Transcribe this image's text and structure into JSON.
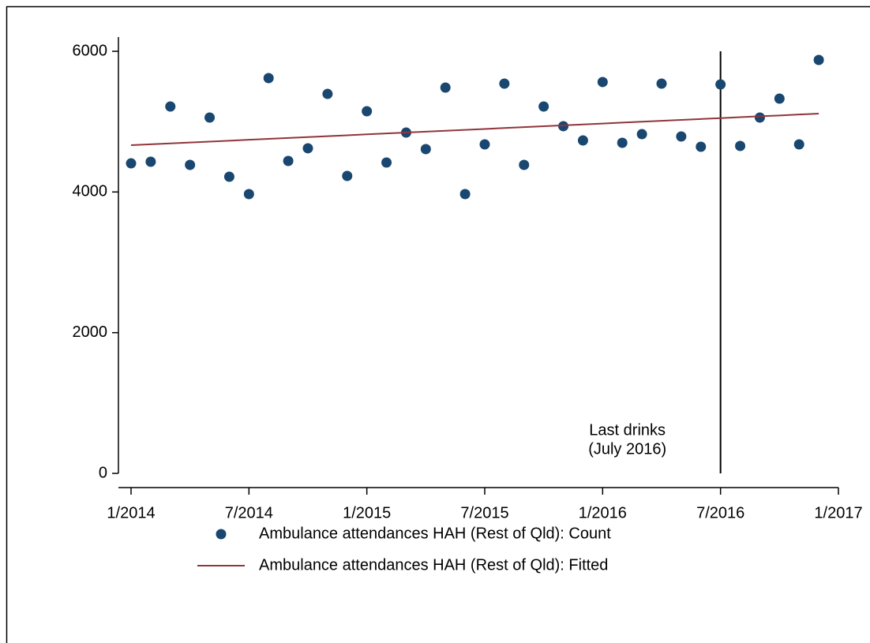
{
  "chart_data": {
    "type": "scatter_fit",
    "x": [
      "1/2014",
      "2/2014",
      "3/2014",
      "4/2014",
      "5/2014",
      "6/2014",
      "7/2014",
      "8/2014",
      "9/2014",
      "10/2014",
      "11/2014",
      "12/2014",
      "1/2015",
      "2/2015",
      "3/2015",
      "4/2015",
      "5/2015",
      "6/2015",
      "7/2015",
      "8/2015",
      "9/2015",
      "10/2015",
      "11/2015",
      "12/2015",
      "1/2016",
      "2/2016",
      "3/2016",
      "4/2016",
      "5/2016",
      "6/2016",
      "7/2016",
      "8/2016",
      "9/2016",
      "10/2016",
      "11/2016",
      "12/2016"
    ],
    "series": [
      {
        "name": "Ambulance attendances HAH (Rest of Qld): Count",
        "mark": "dot",
        "color": "#1a476f",
        "values": [
          4407,
          4430,
          5215,
          4385,
          5058,
          4217,
          3970,
          5619,
          4441,
          4621,
          5394,
          4228,
          5148,
          4419,
          4845,
          4609,
          5484,
          3970,
          4677,
          5540,
          4385,
          5215,
          4935,
          4733,
          5563,
          4699,
          4822,
          5540,
          4789,
          4643,
          5529,
          4654,
          5058,
          5327,
          4677,
          5877
        ]
      },
      {
        "name": "Ambulance attendances HAH (Rest of Qld): Fitted",
        "mark": "line",
        "color": "#90353b",
        "values": [
          4665,
          4678,
          4691,
          4703,
          4716,
          4729,
          4742,
          4755,
          4768,
          4780,
          4793,
          4806,
          4819,
          4832,
          4845,
          4857,
          4870,
          4883,
          4896,
          4909,
          4922,
          4934,
          4947,
          4960,
          4973,
          4986,
          4999,
          5011,
          5024,
          5037,
          5050,
          5063,
          5076,
          5088,
          5101,
          5114
        ]
      }
    ],
    "xlim": [
      "1/2014",
      "1/2017"
    ],
    "xticks": [
      "1/2014",
      "7/2014",
      "1/2015",
      "7/2015",
      "1/2016",
      "7/2016",
      "1/2017"
    ],
    "ylim": [
      0,
      6000
    ],
    "yticks": [
      0,
      2000,
      4000,
      6000
    ],
    "vline": {
      "x": "7/2016",
      "label": [
        "Last drinks",
        "(July 2016)"
      ]
    }
  }
}
